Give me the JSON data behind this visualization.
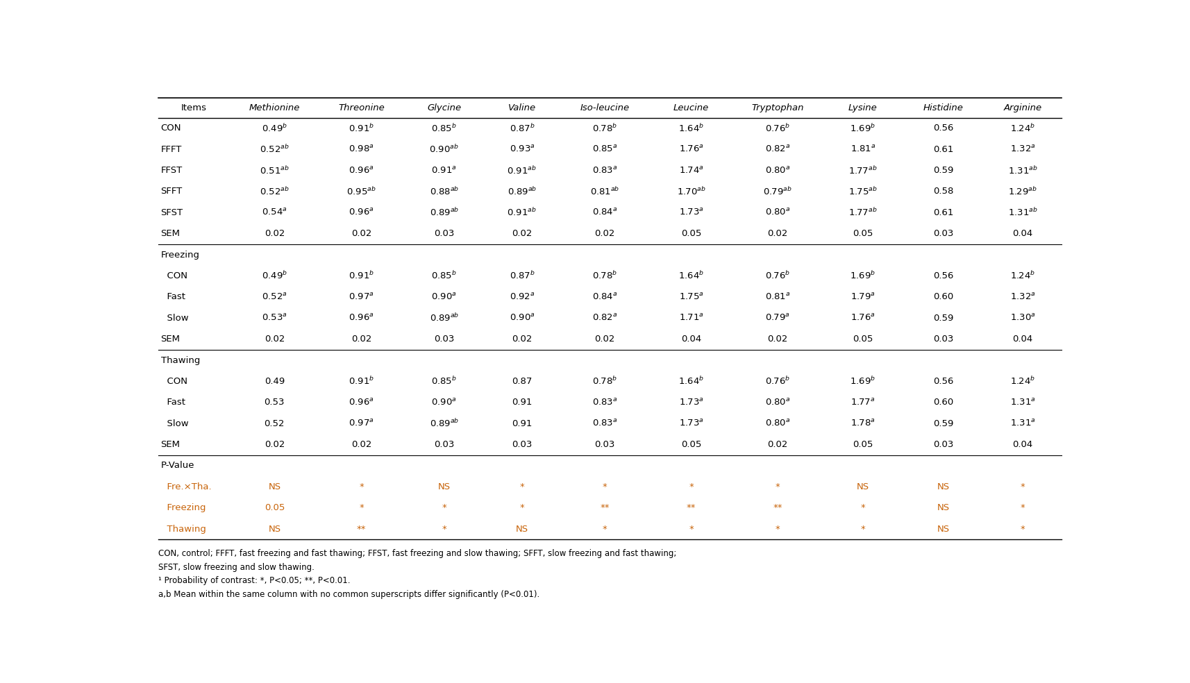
{
  "columns": [
    "Items",
    "Methionine",
    "Threonine",
    "Glycine",
    "Valine",
    "Iso-leucine",
    "Leucine",
    "Tryptophan",
    "Lysine",
    "Histidine",
    "Arginine"
  ],
  "rows": [
    [
      "CON",
      "0.49$^{b}$",
      "0.91$^{b}$",
      "0.85$^{b}$",
      "0.87$^{b}$",
      "0.78$^{b}$",
      "1.64$^{b}$",
      "0.76$^{b}$",
      "1.69$^{b}$",
      "0.56",
      "1.24$^{b}$"
    ],
    [
      "FFFT",
      "0.52$^{ab}$",
      "0.98$^{a}$",
      "0.90$^{ab}$",
      "0.93$^{a}$",
      "0.85$^{a}$",
      "1.76$^{a}$",
      "0.82$^{a}$",
      "1.81$^{a}$",
      "0.61",
      "1.32$^{a}$"
    ],
    [
      "FFST",
      "0.51$^{ab}$",
      "0.96$^{a}$",
      "0.91$^{a}$",
      "0.91$^{ab}$",
      "0.83$^{a}$",
      "1.74$^{a}$",
      "0.80$^{a}$",
      "1.77$^{ab}$",
      "0.59",
      "1.31$^{ab}$"
    ],
    [
      "SFFT",
      "0.52$^{ab}$",
      "0.95$^{ab}$",
      "0.88$^{ab}$",
      "0.89$^{ab}$",
      "0.81$^{ab}$",
      "1.70$^{ab}$",
      "0.79$^{ab}$",
      "1.75$^{ab}$",
      "0.58",
      "1.29$^{ab}$"
    ],
    [
      "SFST",
      "0.54$^{a}$",
      "0.96$^{a}$",
      "0.89$^{ab}$",
      "0.91$^{ab}$",
      "0.84$^{a}$",
      "1.73$^{a}$",
      "0.80$^{a}$",
      "1.77$^{ab}$",
      "0.61",
      "1.31$^{ab}$"
    ],
    [
      "SEM",
      "0.02",
      "0.02",
      "0.03",
      "0.02",
      "0.02",
      "0.05",
      "0.02",
      "0.05",
      "0.03",
      "0.04"
    ],
    [
      "Freezing",
      "",
      "",
      "",
      "",
      "",
      "",
      "",
      "",
      "",
      ""
    ],
    [
      "  CON",
      "0.49$^{b}$",
      "0.91$^{b}$",
      "0.85$^{b}$",
      "0.87$^{b}$",
      "0.78$^{b}$",
      "1.64$^{b}$",
      "0.76$^{b}$",
      "1.69$^{b}$",
      "0.56",
      "1.24$^{b}$"
    ],
    [
      "  Fast",
      "0.52$^{a}$",
      "0.97$^{a}$",
      "0.90$^{a}$",
      "0.92$^{a}$",
      "0.84$^{a}$",
      "1.75$^{a}$",
      "0.81$^{a}$",
      "1.79$^{a}$",
      "0.60",
      "1.32$^{a}$"
    ],
    [
      "  Slow",
      "0.53$^{a}$",
      "0.96$^{a}$",
      "0.89$^{ab}$",
      "0.90$^{a}$",
      "0.82$^{a}$",
      "1.71$^{a}$",
      "0.79$^{a}$",
      "1.76$^{a}$",
      "0.59",
      "1.30$^{a}$"
    ],
    [
      "SEM",
      "0.02",
      "0.02",
      "0.03",
      "0.02",
      "0.02",
      "0.04",
      "0.02",
      "0.05",
      "0.03",
      "0.04"
    ],
    [
      "Thawing",
      "",
      "",
      "",
      "",
      "",
      "",
      "",
      "",
      "",
      ""
    ],
    [
      "  CON",
      "0.49",
      "0.91$^{b}$",
      "0.85$^{b}$",
      "0.87",
      "0.78$^{b}$",
      "1.64$^{b}$",
      "0.76$^{b}$",
      "1.69$^{b}$",
      "0.56",
      "1.24$^{b}$"
    ],
    [
      "  Fast",
      "0.53",
      "0.96$^{a}$",
      "0.90$^{a}$",
      "0.91",
      "0.83$^{a}$",
      "1.73$^{a}$",
      "0.80$^{a}$",
      "1.77$^{a}$",
      "0.60",
      "1.31$^{a}$"
    ],
    [
      "  Slow",
      "0.52",
      "0.97$^{a}$",
      "0.89$^{ab}$",
      "0.91",
      "0.83$^{a}$",
      "1.73$^{a}$",
      "0.80$^{a}$",
      "1.78$^{a}$",
      "0.59",
      "1.31$^{a}$"
    ],
    [
      "SEM",
      "0.02",
      "0.02",
      "0.03",
      "0.03",
      "0.03",
      "0.05",
      "0.02",
      "0.05",
      "0.03",
      "0.04"
    ],
    [
      "P-Value",
      "",
      "",
      "",
      "",
      "",
      "",
      "",
      "",
      "",
      ""
    ],
    [
      "  Fre.×Tha.",
      "NS",
      "*",
      "NS",
      "*",
      "*",
      "*",
      "*",
      "NS",
      "NS",
      "*"
    ],
    [
      "  Freezing",
      "0.05",
      "*",
      "*",
      "*",
      "**",
      "**",
      "**",
      "*",
      "NS",
      "*"
    ],
    [
      "  Thawing",
      "NS",
      "**",
      "*",
      "NS",
      "*",
      "*",
      "*",
      "*",
      "NS",
      "*"
    ]
  ],
  "section_rows": [
    6,
    11,
    16
  ],
  "orange_rows": [
    17,
    18,
    19
  ],
  "header_color": "#000000",
  "data_color": "#000000",
  "orange_color": "#c8640a",
  "background_color": "#ffffff",
  "font_size": 9.5,
  "header_font_size": 9.5,
  "footnote1": "CON, control; FFFT, fast freezing and fast thawing; FFST, fast freezing and slow thawing; SFFT, slow freezing and fast thawing;",
  "footnote2": "SFST, slow freezing and slow thawing.",
  "footnote3": "¹ Probability of contrast: *, P<0.05; **, P<0.01.",
  "footnote4": "a,b Mean within the same column with no common superscripts differ significantly (P<0.01)."
}
